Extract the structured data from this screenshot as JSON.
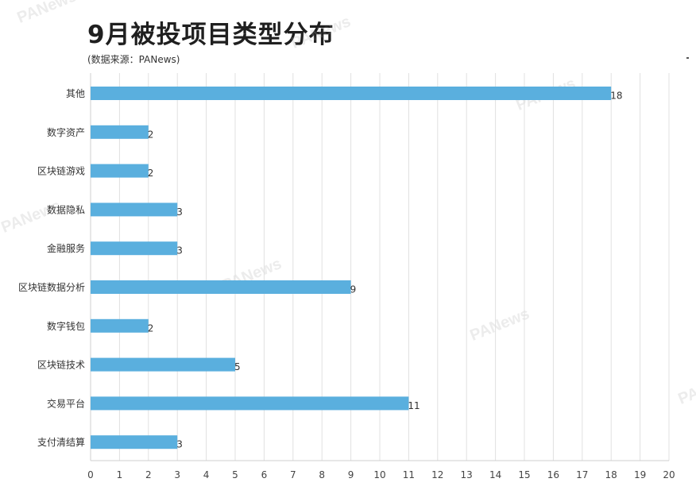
{
  "chart_data": {
    "type": "bar",
    "orientation": "horizontal",
    "title": "9月被投项目类型分布",
    "subtitle": "(数据来源：PANews)",
    "categories": [
      "其他",
      "数字资产",
      "区块链游戏",
      "数据隐私",
      "金融服务",
      "区块链数据分析",
      "数字钱包",
      "区块链技术",
      "交易平台",
      "支付清结算"
    ],
    "values": [
      18,
      2,
      2,
      3,
      3,
      9,
      2,
      5,
      11,
      3
    ],
    "xlim": [
      0,
      20
    ],
    "xticks": [
      0,
      1,
      2,
      3,
      4,
      5,
      6,
      7,
      8,
      9,
      10,
      11,
      12,
      13,
      14,
      15,
      16,
      17,
      18,
      19,
      20
    ],
    "grid": true,
    "bar_color": "#5aafde",
    "watermark": "PANews"
  }
}
